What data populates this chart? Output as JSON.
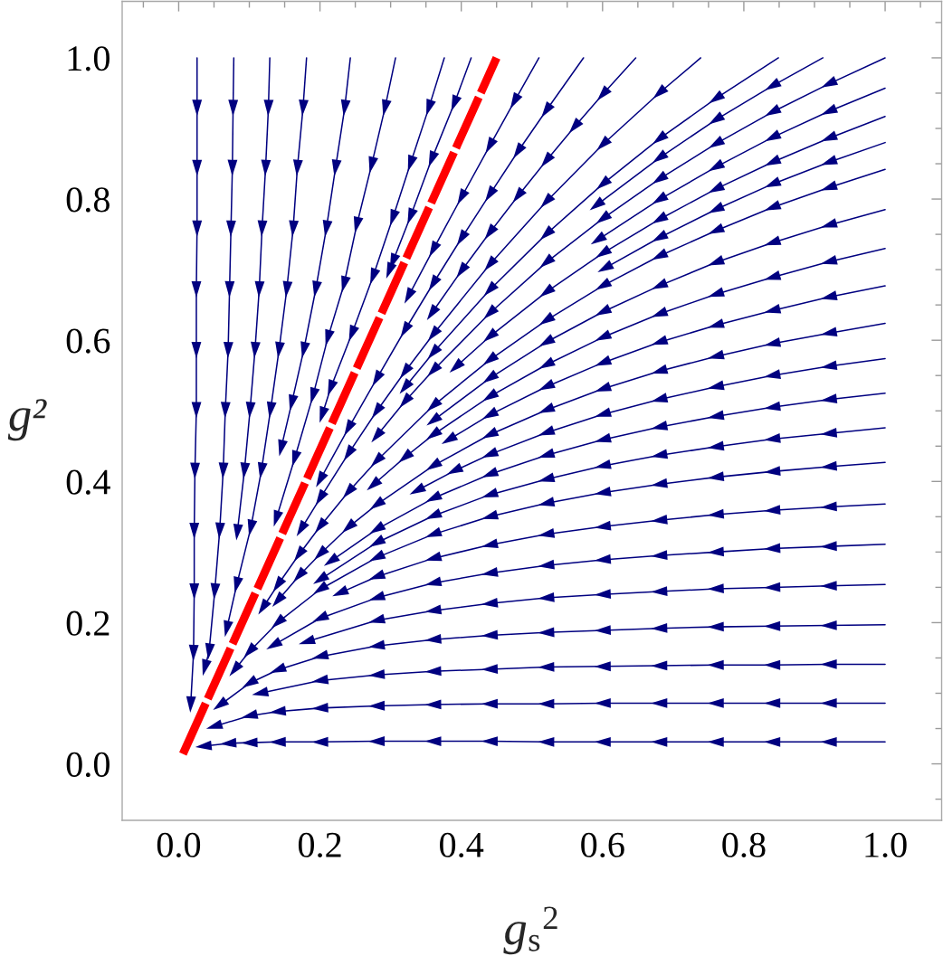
{
  "chart_data": {
    "type": "line",
    "xlabel": "g$_{s}$$^{2}$",
    "ylabel": "g²",
    "xlim": [
      -0.08,
      1.08
    ],
    "ylim": [
      -0.08,
      1.08
    ],
    "xticks": [
      {
        "value": 0,
        "label": "0.0"
      },
      {
        "value": 0.2,
        "label": "0.2"
      },
      {
        "value": 0.4,
        "label": "0.4"
      },
      {
        "value": 0.6,
        "label": "0.6"
      },
      {
        "value": 0.8,
        "label": "0.8"
      },
      {
        "value": 1,
        "label": "1.0"
      }
    ],
    "yticks": [
      {
        "value": 0,
        "label": "0.0"
      },
      {
        "value": 0.2,
        "label": "0.2"
      },
      {
        "value": 0.4,
        "label": "0.4"
      },
      {
        "value": 0.6,
        "label": "0.6"
      },
      {
        "value": 0.8,
        "label": "0.8"
      },
      {
        "value": 1,
        "label": "1.0"
      }
    ],
    "marker": "triangle",
    "series": [
      {
        "color": "#000080",
        "x": [
          0.026,
          0.026,
          0.026,
          0.026,
          0.025,
          0.025,
          0.025,
          0.023,
          0.022,
          0.022,
          0.021,
          0.017
        ],
        "values": [
          1.0,
          0.929,
          0.844,
          0.758,
          0.672,
          0.586,
          0.501,
          0.415,
          0.33,
          0.244,
          0.157,
          0.084
        ]
      },
      {
        "color": "#000080",
        "x": [
          0.078,
          0.077,
          0.076,
          0.074,
          0.072,
          0.07,
          0.066,
          0.063,
          0.058,
          0.051,
          0.043,
          0.037
        ],
        "values": [
          1.0,
          0.929,
          0.844,
          0.758,
          0.672,
          0.586,
          0.501,
          0.415,
          0.33,
          0.244,
          0.159,
          0.136
        ]
      },
      {
        "color": "#000080",
        "x": [
          0.129,
          0.127,
          0.123,
          0.118,
          0.114,
          0.108,
          0.101,
          0.093,
          0.083
        ],
        "values": [
          1.0,
          0.929,
          0.844,
          0.758,
          0.672,
          0.586,
          0.501,
          0.415,
          0.328
        ]
      },
      {
        "color": "#000080",
        "x": [
          0.181,
          0.176,
          0.168,
          0.162,
          0.153,
          0.142,
          0.13,
          0.117,
          0.102,
          0.082,
          0.068
        ],
        "values": [
          1.0,
          0.929,
          0.844,
          0.758,
          0.672,
          0.586,
          0.501,
          0.415,
          0.334,
          0.253,
          0.191
        ]
      },
      {
        "color": "#000080",
        "x": [
          0.243,
          0.235,
          0.222,
          0.209,
          0.194,
          0.177,
          0.16,
          0.145
        ],
        "values": [
          1.0,
          0.929,
          0.844,
          0.758,
          0.672,
          0.586,
          0.511,
          0.447
        ]
      },
      {
        "color": "#000080",
        "x": [
          0.307,
          0.292,
          0.273,
          0.252,
          0.234,
          0.211,
          0.19,
          0.164,
          0.138
        ],
        "values": [
          1.0,
          0.929,
          0.848,
          0.763,
          0.679,
          0.603,
          0.521,
          0.432,
          0.347
        ]
      },
      {
        "color": "#000080",
        "x": [
          0.376,
          0.354,
          0.328,
          0.303,
          0.275,
          0.245,
          0.215,
          0.203
        ],
        "values": [
          1.0,
          0.929,
          0.85,
          0.773,
          0.69,
          0.609,
          0.532,
          0.494
        ]
      },
      {
        "color": "#000080",
        "x": [
          0.414,
          0.39,
          0.358,
          0.328,
          0.303,
          0.298
        ],
        "values": [
          1.0,
          0.935,
          0.856,
          0.775,
          0.711,
          0.698
        ]
      },
      {
        "color": "#000080",
        "x": [
          0.51,
          0.475,
          0.44,
          0.4,
          0.36,
          0.325
        ],
        "values": [
          1.0,
          0.938,
          0.875,
          0.802,
          0.728,
          0.662
        ]
      },
      {
        "color": "#000080",
        "x": [
          0.573,
          0.52,
          0.48,
          0.44,
          0.4,
          0.36,
          0.32,
          0.28,
          0.24,
          0.2
        ],
        "values": [
          1.0,
          0.925,
          0.867,
          0.806,
          0.744,
          0.68,
          0.614,
          0.545,
          0.475,
          0.402
        ]
      },
      {
        "color": "#000080",
        "x": [
          0.647,
          0.6,
          0.56,
          0.52,
          0.48,
          0.44,
          0.4,
          0.358
        ],
        "values": [
          1.0,
          0.948,
          0.902,
          0.854,
          0.804,
          0.752,
          0.698,
          0.638
        ]
      },
      {
        "color": "#000080",
        "x": [
          0.739,
          0.68,
          0.6,
          0.52,
          0.44,
          0.36,
          0.32,
          0.28,
          0.24,
          0.2,
          0.173
        ],
        "values": [
          1.0,
          0.95,
          0.877,
          0.796,
          0.707,
          0.608,
          0.555,
          0.499,
          0.439,
          0.376,
          0.332
        ]
      },
      {
        "color": "#000080",
        "x": [
          0.849,
          0.76,
          0.68,
          0.6,
          0.52,
          0.44,
          0.36,
          0.32
        ],
        "values": [
          1.0,
          0.942,
          0.885,
          0.821,
          0.75,
          0.671,
          0.582,
          0.533
        ]
      },
      {
        "color": "#000080",
        "x": [
          0.912,
          0.84,
          0.76,
          0.68,
          0.591
        ],
        "values": [
          1.0,
          0.96,
          0.912,
          0.858,
          0.791
        ]
      },
      {
        "color": "#000080",
        "x": [
          1.0,
          0.92,
          0.84,
          0.76,
          0.68,
          0.6,
          0.52,
          0.44,
          0.36,
          0.32,
          0.28
        ],
        "values": [
          1.0,
          0.963,
          0.923,
          0.878,
          0.828,
          0.772,
          0.71,
          0.638,
          0.557,
          0.513,
          0.464
        ]
      },
      {
        "color": "#000080",
        "x": [
          1.0,
          0.92,
          0.84,
          0.76,
          0.68,
          0.593
        ],
        "values": [
          0.957,
          0.924,
          0.887,
          0.845,
          0.799,
          0.742
        ]
      },
      {
        "color": "#000080",
        "x": [
          1.0,
          0.92,
          0.84,
          0.76,
          0.68,
          0.6,
          0.52,
          0.44,
          0.392
        ],
        "values": [
          0.917,
          0.886,
          0.852,
          0.814,
          0.771,
          0.723,
          0.668,
          0.605,
          0.562
        ]
      },
      {
        "color": "#000080",
        "x": [
          1.0,
          0.92,
          0.84,
          0.76,
          0.68,
          0.603
        ],
        "values": [
          0.88,
          0.852,
          0.821,
          0.785,
          0.745,
          0.702
        ]
      },
      {
        "color": "#000080",
        "x": [
          1.0,
          0.92,
          0.84,
          0.76,
          0.68,
          0.6,
          0.52,
          0.44,
          0.36,
          0.28,
          0.24,
          0.2,
          0.17,
          0.14,
          0.119
        ],
        "values": [
          0.842,
          0.816,
          0.788,
          0.755,
          0.719,
          0.677,
          0.628,
          0.572,
          0.507,
          0.429,
          0.385,
          0.336,
          0.296,
          0.253,
          0.221
        ]
      },
      {
        "color": "#000080",
        "x": [
          1.0,
          0.92,
          0.84,
          0.76,
          0.68,
          0.6,
          0.52,
          0.44,
          0.36
        ],
        "values": [
          0.785,
          0.763,
          0.738,
          0.71,
          0.677,
          0.64,
          0.597,
          0.546,
          0.486
        ]
      },
      {
        "color": "#000080",
        "x": [
          1.0,
          0.92,
          0.84,
          0.76,
          0.68,
          0.6,
          0.52,
          0.44,
          0.36,
          0.32,
          0.275
        ],
        "values": [
          0.73,
          0.711,
          0.689,
          0.665,
          0.637,
          0.604,
          0.565,
          0.52,
          0.466,
          0.434,
          0.395
        ]
      },
      {
        "color": "#000080",
        "x": [
          1.0,
          0.92,
          0.84,
          0.76,
          0.68,
          0.6,
          0.52,
          0.44,
          0.382
        ],
        "values": [
          0.677,
          0.661,
          0.642,
          0.621,
          0.597,
          0.568,
          0.534,
          0.494,
          0.459
        ]
      },
      {
        "color": "#000080",
        "x": [
          1.0,
          0.92,
          0.84,
          0.76,
          0.68,
          0.6,
          0.52,
          0.44,
          0.36,
          0.28,
          0.24,
          0.2,
          0.17,
          0.14
        ],
        "values": [
          0.624,
          0.61,
          0.595,
          0.577,
          0.556,
          0.531,
          0.501,
          0.466,
          0.422,
          0.367,
          0.335,
          0.297,
          0.266,
          0.231
        ]
      },
      {
        "color": "#000080",
        "x": [
          1.0,
          0.92,
          0.84,
          0.76,
          0.68,
          0.6,
          0.52,
          0.44,
          0.39,
          0.337
        ],
        "values": [
          0.574,
          0.563,
          0.55,
          0.534,
          0.516,
          0.495,
          0.469,
          0.438,
          0.415,
          0.387
        ]
      },
      {
        "color": "#000080",
        "x": [
          1.0,
          0.92,
          0.84,
          0.76,
          0.68,
          0.6,
          0.52,
          0.44,
          0.36,
          0.28,
          0.215
        ],
        "values": [
          0.525,
          0.516,
          0.505,
          0.492,
          0.477,
          0.459,
          0.437,
          0.41,
          0.376,
          0.332,
          0.287
        ]
      },
      {
        "color": "#000080",
        "x": [
          1.0,
          0.92,
          0.84,
          0.76,
          0.68,
          0.6,
          0.52,
          0.44,
          0.36,
          0.28,
          0.2
        ],
        "values": [
          0.476,
          0.468,
          0.46,
          0.449,
          0.437,
          0.422,
          0.403,
          0.381,
          0.351,
          0.313,
          0.261
        ]
      },
      {
        "color": "#000080",
        "x": [
          1.0,
          0.92,
          0.84,
          0.76,
          0.68,
          0.6,
          0.52,
          0.44,
          0.36,
          0.28,
          0.2,
          0.14,
          0.1,
          0.079
        ],
        "values": [
          0.427,
          0.421,
          0.414,
          0.406,
          0.396,
          0.384,
          0.369,
          0.35,
          0.325,
          0.292,
          0.247,
          0.2,
          0.159,
          0.133
        ]
      },
      {
        "color": "#000080",
        "x": [
          1.0,
          0.92,
          0.84,
          0.76,
          0.68,
          0.6,
          0.52,
          0.44,
          0.36,
          0.28,
          0.228
        ],
        "values": [
          0.368,
          0.364,
          0.359,
          0.353,
          0.345,
          0.336,
          0.325,
          0.31,
          0.291,
          0.265,
          0.242
        ]
      },
      {
        "color": "#000080",
        "x": [
          1.0,
          0.92,
          0.84,
          0.76,
          0.68,
          0.6,
          0.52,
          0.44,
          0.36,
          0.28,
          0.2,
          0.134
        ],
        "values": [
          0.311,
          0.308,
          0.305,
          0.3,
          0.295,
          0.289,
          0.281,
          0.27,
          0.256,
          0.235,
          0.206,
          0.168
        ]
      },
      {
        "color": "#000080",
        "x": [
          1.0,
          0.92,
          0.84,
          0.76,
          0.68,
          0.6,
          0.52,
          0.44,
          0.36,
          0.28,
          0.181
        ],
        "values": [
          0.254,
          0.252,
          0.25,
          0.248,
          0.244,
          0.24,
          0.235,
          0.227,
          0.217,
          0.203,
          0.173
        ]
      },
      {
        "color": "#000080",
        "x": [
          1.0,
          0.92,
          0.84,
          0.76,
          0.68,
          0.6,
          0.52,
          0.44,
          0.36,
          0.28,
          0.2,
          0.14,
          0.1,
          0.058
        ],
        "values": [
          0.197,
          0.196,
          0.195,
          0.194,
          0.192,
          0.189,
          0.186,
          0.182,
          0.176,
          0.167,
          0.152,
          0.133,
          0.114,
          0.083
        ]
      },
      {
        "color": "#000080",
        "x": [
          1.0,
          0.92,
          0.84,
          0.76,
          0.68,
          0.6,
          0.52,
          0.44,
          0.36,
          0.28,
          0.2,
          0.115
        ],
        "values": [
          0.141,
          0.141,
          0.14,
          0.14,
          0.139,
          0.138,
          0.137,
          0.134,
          0.131,
          0.126,
          0.118,
          0.1
        ]
      },
      {
        "color": "#000080",
        "x": [
          1.0,
          0.92,
          0.84,
          0.76,
          0.68,
          0.6,
          0.52,
          0.44,
          0.36,
          0.28,
          0.2,
          0.14,
          0.1,
          0.05
        ],
        "values": [
          0.086,
          0.086,
          0.086,
          0.086,
          0.086,
          0.086,
          0.085,
          0.085,
          0.084,
          0.082,
          0.079,
          0.074,
          0.068,
          0.053
        ]
      },
      {
        "color": "#000080",
        "x": [
          1.0,
          0.92,
          0.84,
          0.76,
          0.68,
          0.6,
          0.52,
          0.44,
          0.36,
          0.28,
          0.2,
          0.14,
          0.1,
          0.07,
          0.035
        ],
        "values": [
          0.031,
          0.031,
          0.031,
          0.031,
          0.031,
          0.031,
          0.031,
          0.032,
          0.032,
          0.032,
          0.031,
          0.031,
          0.03,
          0.029,
          0.025
        ]
      },
      {
        "color": "#ff0000",
        "x": [
          0.006,
          0.45
        ],
        "values": [
          0.014,
          1.0
        ],
        "line_style": "dashed",
        "marker": "none"
      }
    ]
  }
}
